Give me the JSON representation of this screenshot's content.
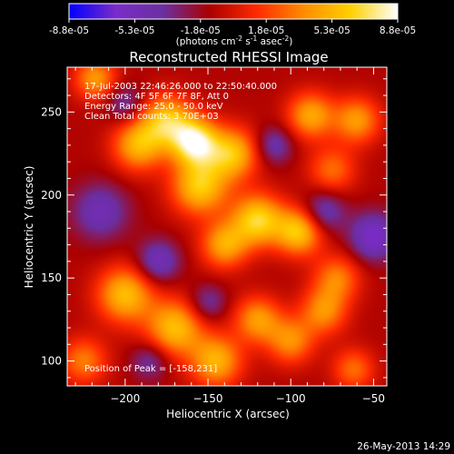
{
  "colorbar": {
    "tick_labels": [
      "-8.8e-05",
      "-5.3e-05",
      "-1.8e-05",
      "1.8e-05",
      "5.3e-05",
      "8.8e-05"
    ],
    "units_text": "(photons cm",
    "units_sup1": "-2",
    "units_mid": " s",
    "units_sup2": "-1",
    "units_end": " asec",
    "units_sup3": "-2",
    "units_close": ")",
    "colors": [
      "#0000ff",
      "#7a2cc7",
      "#6b2fa0",
      "#aa0000",
      "#ff2a00",
      "#ff8c00",
      "#ffd000",
      "#ffffff"
    ]
  },
  "chart_data": {
    "type": "heatmap",
    "title": "Reconstructed RHESSI Image",
    "xlabel": "Heliocentric X (arcsec)",
    "ylabel": "Heliocentric Y (arcsec)",
    "xlim": [
      -235,
      -42
    ],
    "ylim": [
      85,
      277
    ],
    "x_ticks": [
      -200,
      -150,
      -100,
      -50
    ],
    "y_ticks": [
      100,
      150,
      200,
      250
    ],
    "x_tick_labels": [
      "−200",
      "−150",
      "−100",
      "−50"
    ],
    "y_tick_labels": [
      "100",
      "150",
      "200",
      "250"
    ],
    "value_range": [
      -8.8e-05,
      8.8e-05
    ],
    "sources": [
      {
        "x": -158,
        "y": 232,
        "amp": 1.0,
        "s": 10
      },
      {
        "x": -175,
        "y": 245,
        "amp": 0.75,
        "s": 11
      },
      {
        "x": -192,
        "y": 230,
        "amp": 0.7,
        "s": 11
      },
      {
        "x": -135,
        "y": 225,
        "amp": 0.75,
        "s": 11
      },
      {
        "x": -155,
        "y": 205,
        "amp": 0.8,
        "s": 12
      },
      {
        "x": -120,
        "y": 185,
        "amp": 0.85,
        "s": 11
      },
      {
        "x": -95,
        "y": 178,
        "amp": 0.8,
        "s": 10
      },
      {
        "x": -140,
        "y": 170,
        "amp": 0.65,
        "s": 10
      },
      {
        "x": -200,
        "y": 140,
        "amp": 0.75,
        "s": 12
      },
      {
        "x": -170,
        "y": 120,
        "amp": 0.75,
        "s": 12
      },
      {
        "x": -145,
        "y": 100,
        "amp": 0.7,
        "s": 11
      },
      {
        "x": -120,
        "y": 125,
        "amp": 0.6,
        "s": 10
      },
      {
        "x": -100,
        "y": 112,
        "amp": 0.55,
        "s": 10
      },
      {
        "x": -80,
        "y": 130,
        "amp": 0.55,
        "s": 10
      },
      {
        "x": -72,
        "y": 150,
        "amp": 0.5,
        "s": 10
      },
      {
        "x": -88,
        "y": 248,
        "amp": 0.65,
        "s": 10
      },
      {
        "x": -60,
        "y": 245,
        "amp": 0.6,
        "s": 10
      },
      {
        "x": -75,
        "y": 215,
        "amp": 0.45,
        "s": 10
      },
      {
        "x": -218,
        "y": 270,
        "amp": 0.6,
        "s": 9
      },
      {
        "x": -225,
        "y": 100,
        "amp": 0.5,
        "s": 10
      },
      {
        "x": -62,
        "y": 95,
        "amp": 0.45,
        "s": 9
      },
      {
        "x": -50,
        "y": 175,
        "amp": -0.6,
        "s": 10
      },
      {
        "x": -80,
        "y": 190,
        "amp": -0.45,
        "s": 9
      },
      {
        "x": -215,
        "y": 190,
        "amp": -0.45,
        "s": 12
      },
      {
        "x": -200,
        "y": 255,
        "amp": -0.35,
        "s": 8
      },
      {
        "x": -180,
        "y": 160,
        "amp": -0.5,
        "s": 9
      },
      {
        "x": -110,
        "y": 230,
        "amp": -0.4,
        "s": 8
      },
      {
        "x": -185,
        "y": 100,
        "amp": -0.35,
        "s": 8
      },
      {
        "x": -150,
        "y": 135,
        "amp": -0.35,
        "s": 8
      }
    ]
  },
  "annotations": {
    "time_range": "17-Jul-2003 22:46:26.000 to 22:50:40.000",
    "detectors": "Detectors: 4F 5F 6F 7F 8F, Att 0",
    "energy": "Energy Range: 25.0 - 50.0 keV",
    "clean": "Clean     Total counts: 3.70E+03",
    "peak": "Position of Peak = [-158,231]"
  },
  "footer": {
    "timestamp": "26-May-2013 14:29"
  }
}
